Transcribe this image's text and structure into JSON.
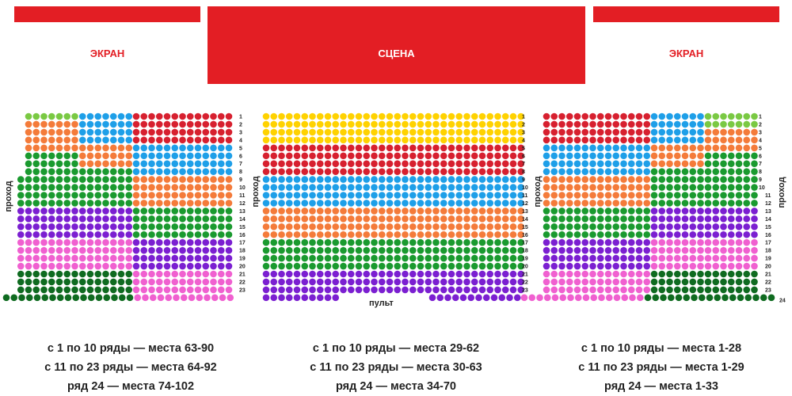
{
  "screens": {
    "left": "ЭКРАН",
    "right": "ЭКРАН"
  },
  "stage": "СЦЕНА",
  "aisle_label": "проход",
  "console_label": "пульт",
  "row_numbers_main": [
    "1",
    "2",
    "3",
    "4",
    "5",
    "6",
    "7",
    "8",
    "9",
    "10",
    "11",
    "12",
    "13",
    "14",
    "15",
    "16",
    "17",
    "18",
    "19",
    "20",
    "21",
    "22",
    "23"
  ],
  "row_number_last": "24",
  "colors": {
    "light_green": "#7ac943",
    "blue": "#1e9fe8",
    "red": "#d7202f",
    "orange": "#f47b3a",
    "green": "#1a9a2f",
    "purple": "#7b1fd1",
    "pink": "#f060d0",
    "dark_green": "#0f6b20",
    "yellow": "#ffd200"
  },
  "legend": [
    {
      "line1": "с 1 по 10 ряды — места  63-90",
      "line2": "с 11 по 23 ряды — места 64-92",
      "line3": "ряд 24 — места 74-102"
    },
    {
      "line1": "с 1 по 10 ряды — места  29-62",
      "line2": "с 11 по 23 ряды — места 30-63",
      "line3": "ряд 24 — места 34-70"
    },
    {
      "line1": "с 1 по 10 ряды — места 1-28",
      "line2": "с 11 по 23 ряды — места 1-29",
      "line3": "ряд 24 — места 1-33"
    }
  ]
}
